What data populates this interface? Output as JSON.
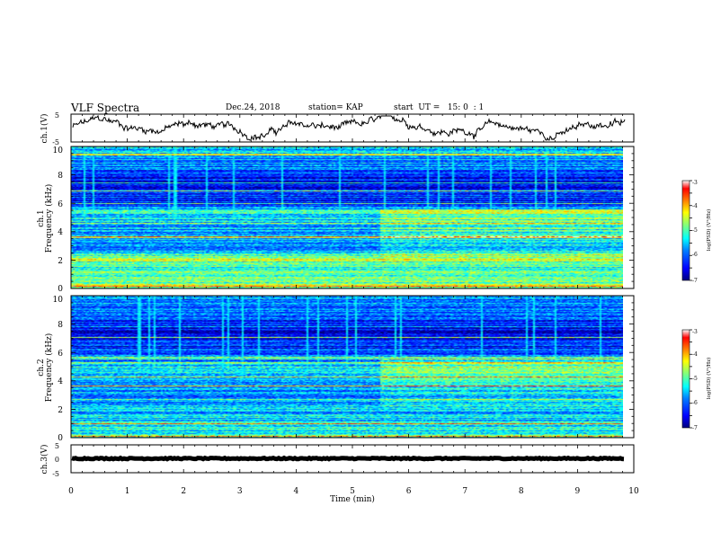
{
  "header": {
    "title": "VLF Spectra",
    "date": "Dec.24, 2018",
    "station": "station= KAP",
    "start": "start  UT =   15: 0  : 1"
  },
  "chart_data": [
    {
      "type": "line",
      "panel": "ch1-waveform",
      "ylabel": "ch.1(V)",
      "ylim": [
        -5,
        5
      ],
      "yticks": [
        5,
        -5
      ],
      "xlim": [
        0,
        10
      ],
      "color": "#000000",
      "approx_level": 0.2,
      "approx_amplitude": 2.2
    },
    {
      "type": "heatmap",
      "panel": "ch1-spectrogram",
      "ylabel": [
        "ch.1",
        "Frequency (kHz)"
      ],
      "ylim": [
        0,
        10
      ],
      "yticks": [
        0,
        2,
        4,
        6,
        8,
        10
      ],
      "xlim": [
        0,
        9.85
      ],
      "colorbar": {
        "label": "log(PSD) (V²/Hz)",
        "range": [
          -7,
          -3
        ],
        "ticks": [
          -3,
          -4,
          -5,
          -6,
          -7
        ],
        "colormap": [
          "#00007f",
          "#0000ff",
          "#007fff",
          "#00ffff",
          "#7fff7f",
          "#ffff00",
          "#ff7f00",
          "#ff0000",
          "#ffffff"
        ]
      },
      "profile_khz_logpsd": [
        [
          0,
          -4.6
        ],
        [
          0.5,
          -4.9
        ],
        [
          1,
          -5.0
        ],
        [
          1.5,
          -5.2
        ],
        [
          2,
          -4.6
        ],
        [
          2.5,
          -5.3
        ],
        [
          3,
          -5.8
        ],
        [
          3.5,
          -5.5
        ],
        [
          4,
          -5.7
        ],
        [
          4.5,
          -5.6
        ],
        [
          5,
          -5.5
        ],
        [
          5.5,
          -5.4
        ],
        [
          6,
          -6.2
        ],
        [
          7,
          -6.3
        ],
        [
          7.5,
          -6.6
        ],
        [
          8,
          -6.3
        ],
        [
          8.5,
          -6.0
        ],
        [
          9,
          -5.7
        ],
        [
          9.5,
          -5.5
        ],
        [
          10,
          -5.5
        ]
      ],
      "shift_at_min": 5.5
    },
    {
      "type": "heatmap",
      "panel": "ch2-spectrogram",
      "ylabel": [
        "ch.2",
        "Frequency (kHz)"
      ],
      "ylim": [
        0,
        10
      ],
      "yticks": [
        0,
        2,
        4,
        6,
        8,
        10
      ],
      "xlim": [
        0,
        9.85
      ],
      "colorbar": {
        "label": "log(PSD) (V²/Hz)",
        "range": [
          -7,
          -3
        ],
        "ticks": [
          -3,
          -4,
          -5,
          -6,
          -7
        ],
        "colormap": [
          "#00007f",
          "#0000ff",
          "#007fff",
          "#00ffff",
          "#7fff7f",
          "#ffff00",
          "#ff7f00",
          "#ff0000",
          "#ffffff"
        ]
      },
      "profile_khz_logpsd": [
        [
          0,
          -4.9
        ],
        [
          0.5,
          -5.3
        ],
        [
          1,
          -5.4
        ],
        [
          1.5,
          -5.6
        ],
        [
          2,
          -5.5
        ],
        [
          2.5,
          -5.8
        ],
        [
          3,
          -5.9
        ],
        [
          3.5,
          -5.7
        ],
        [
          4,
          -5.6
        ],
        [
          4.5,
          -5.4
        ],
        [
          5,
          -5.3
        ],
        [
          5.5,
          -5.6
        ],
        [
          6,
          -6.2
        ],
        [
          7,
          -6.4
        ],
        [
          7.5,
          -6.6
        ],
        [
          8,
          -6.4
        ],
        [
          8.5,
          -6.2
        ],
        [
          9,
          -6.0
        ],
        [
          9.5,
          -5.9
        ],
        [
          10,
          -5.8
        ]
      ],
      "shift_at_min": 5.5
    },
    {
      "type": "line",
      "panel": "ch3-waveform",
      "ylabel": "ch.3(V)",
      "ylim": [
        -5,
        5
      ],
      "yticks": [
        5,
        0,
        -5
      ],
      "xlim": [
        0,
        10
      ],
      "xticks": [
        0,
        1,
        2,
        3,
        4,
        5,
        6,
        7,
        8,
        9,
        10
      ],
      "xlabel": "Time (min)",
      "color": "#000000",
      "approx_level": 0.1,
      "approx_amplitude": 0.4
    }
  ]
}
